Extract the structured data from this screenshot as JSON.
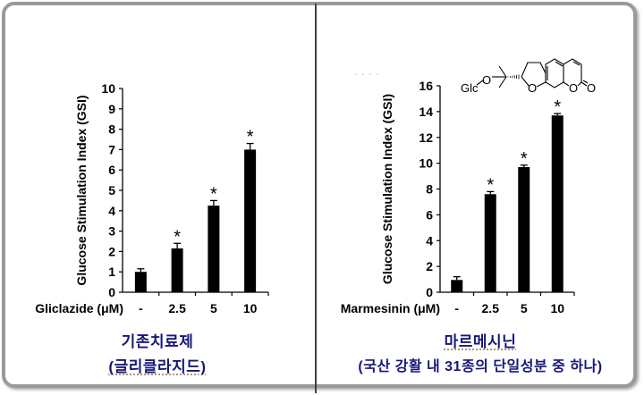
{
  "chart_data": [
    {
      "type": "bar",
      "title": "",
      "xlabel": "Gliclazide (μM)",
      "ylabel": "Glucose Stimulation Index (GSI)",
      "categories": [
        "-",
        "2.5",
        "5",
        "10"
      ],
      "values": [
        1.0,
        2.15,
        4.25,
        7.0
      ],
      "errors": [
        0.15,
        0.25,
        0.25,
        0.3
      ],
      "significance": [
        "",
        "*",
        "*",
        "*"
      ],
      "ylim": [
        0,
        10
      ],
      "yticks": [
        "0",
        "1",
        "2",
        "3",
        "4",
        "5",
        "6",
        "7",
        "8",
        "9",
        "10"
      ],
      "grid": false,
      "legend": null,
      "caption_line1": "기존치료제",
      "caption_line2": "(글리클라지드)"
    },
    {
      "type": "bar",
      "title": "",
      "xlabel": "Marmesinin (μM)",
      "ylabel": "Glucose Stimulation Index (GSI)",
      "categories": [
        "-",
        "2.5",
        "5",
        "10"
      ],
      "values": [
        0.95,
        7.6,
        9.7,
        13.7
      ],
      "errors": [
        0.25,
        0.2,
        0.15,
        0.15
      ],
      "significance": [
        "",
        "*",
        "*",
        "*"
      ],
      "ylim": [
        0,
        16
      ],
      "yticks": [
        "0",
        "2",
        "4",
        "6",
        "8",
        "10",
        "12",
        "14",
        "16"
      ],
      "grid": false,
      "legend": null,
      "structure_label": "Glc",
      "structure_atoms": [
        "O",
        "O",
        "O",
        "O"
      ],
      "caption_line1": "마르메시닌",
      "caption_line2": "(국산 강활 내 31종의 단일성분 중 하나)"
    }
  ],
  "left": {
    "xlabel": "Gliclazide (μM)",
    "ylabel": "Glucose Stimulation Index (GSI)",
    "caption_line1": "기존치료제",
    "caption_line2": "(글리클라지드)"
  },
  "right": {
    "xlabel": "Marmesinin (μM)",
    "ylabel": "Glucose Stimulation Index (GSI)",
    "structure_label": "Glc",
    "caption_line1": "마르메시닌",
    "caption_line2": "(국산 강활 내 31종의 단일성분 중 하나)",
    "dots": "- - - -"
  },
  "colors": {
    "bar": "#000000",
    "caption": "#17177a",
    "frame": "#9a9a9a",
    "divider": "#404040"
  }
}
